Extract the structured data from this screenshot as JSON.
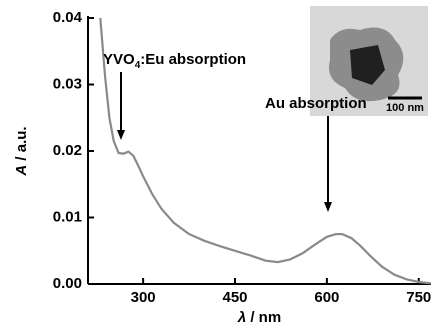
{
  "chart_data": {
    "type": "line",
    "x_label": {
      "symbol": "λ",
      "unit": "/ nm"
    },
    "y_label": {
      "symbol": "A",
      "unit": "/ a.u."
    },
    "x": [
      230,
      238,
      245,
      252,
      260,
      268,
      276,
      284,
      292,
      300,
      315,
      330,
      350,
      375,
      400,
      425,
      450,
      475,
      500,
      520,
      540,
      560,
      580,
      600,
      615,
      625,
      640,
      655,
      670,
      690,
      710,
      730,
      750,
      770
    ],
    "values": [
      0.04,
      0.031,
      0.025,
      0.0215,
      0.0197,
      0.0196,
      0.0199,
      0.0193,
      0.0178,
      0.0162,
      0.0135,
      0.0113,
      0.0092,
      0.0075,
      0.0065,
      0.0057,
      0.005,
      0.0043,
      0.0035,
      0.0033,
      0.0037,
      0.0046,
      0.0059,
      0.0071,
      0.0075,
      0.0075,
      0.0069,
      0.0057,
      0.0043,
      0.0026,
      0.0014,
      0.0007,
      0.0003,
      0.0001
    ],
    "color": "#8a8a8a",
    "xlim": [
      210,
      770
    ],
    "xticks": [
      300,
      450,
      600,
      750
    ],
    "ylim": [
      0,
      0.04
    ],
    "yticks": [
      {
        "value": 0,
        "label": "0.00"
      },
      {
        "value": 0.01,
        "label": "0.01"
      },
      {
        "value": 0.02,
        "label": "0.02"
      },
      {
        "value": 0.03,
        "label": "0.03"
      },
      {
        "value": 0.04,
        "label": "0.04"
      }
    ],
    "annotations": [
      {
        "parts": [
          "YVO",
          "4",
          ":Eu absorption"
        ]
      },
      {
        "parts": [
          "Au absorption"
        ]
      }
    ],
    "inset_scale_label": "100 nm"
  }
}
